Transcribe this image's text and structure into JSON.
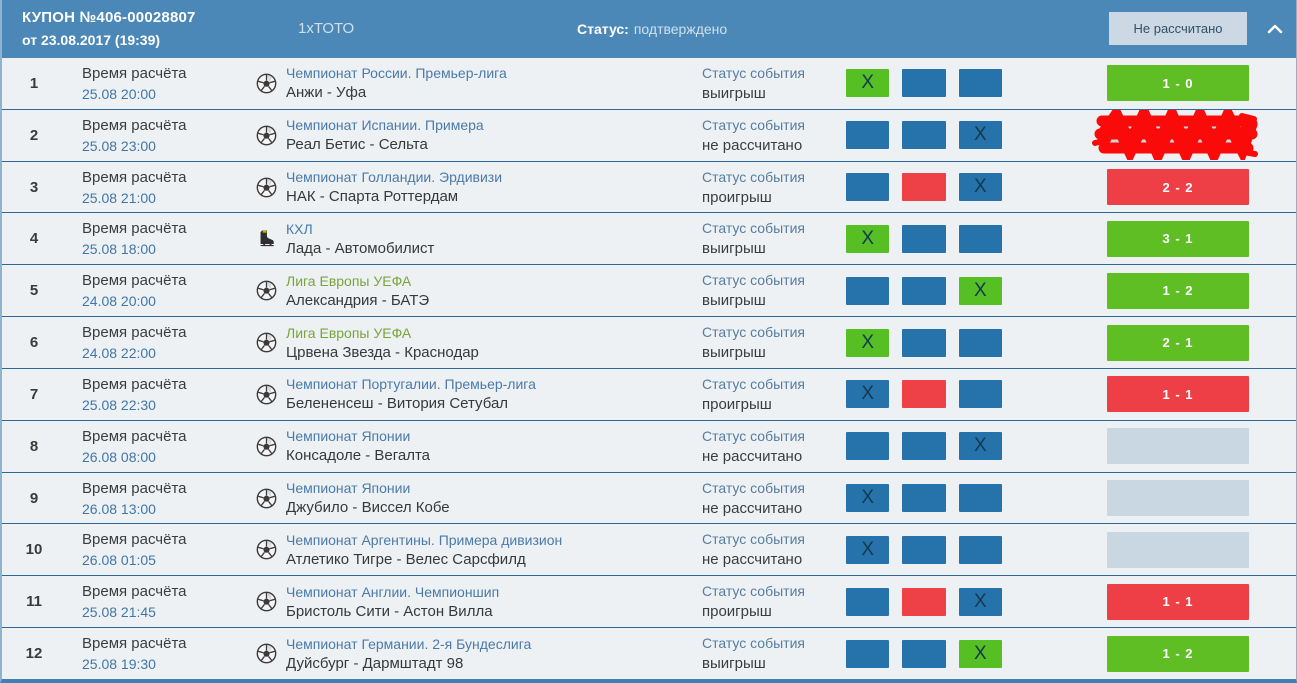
{
  "header": {
    "coupon_title": "КУПОН №406-00028807",
    "coupon_date": "от 23.08.2017 (19:39)",
    "game_type": "1хТОТО",
    "status_label": "Статус:",
    "status_value": "подтверждено",
    "result_button": "Не рассчитано",
    "collapse_icon": "chevron-up-icon"
  },
  "labels": {
    "settlement_time": "Время расчёта",
    "event_status": "Статус события"
  },
  "colors": {
    "header_bg": "#4c88b7",
    "row_bg": "#edf1f4",
    "separator": "#2e6795",
    "box_blue": "#2573aa",
    "box_green": "#55bf23",
    "box_red": "#ee4047",
    "score_win": "#5fbe24",
    "score_lose": "#ee3f47",
    "score_pending": "#c9d7e3",
    "league_link": "#4a7aa9",
    "league_link_green": "#79a43c",
    "redaction_marker": "#fb0a0a"
  },
  "rows": [
    {
      "num": "1",
      "time": "25.08 20:00",
      "sport": "football",
      "league": "Чемпионат России. Премьер-лига",
      "league_color": "blue",
      "match": "Анжи - Уфа",
      "status": "выигрыш",
      "boxes": [
        {
          "c": "green",
          "x": true
        },
        {
          "c": "blue",
          "x": false
        },
        {
          "c": "blue",
          "x": false
        }
      ],
      "score": "1 - 0",
      "score_style": "win",
      "redacted": false
    },
    {
      "num": "2",
      "time": "25.08 23:00",
      "sport": "football",
      "league": "Чемпионат Испании. Примера",
      "league_color": "blue",
      "match": "Реал Бетис - Сельта",
      "status": "не рассчитано",
      "boxes": [
        {
          "c": "blue",
          "x": false
        },
        {
          "c": "blue",
          "x": false
        },
        {
          "c": "blue",
          "x": true
        }
      ],
      "score": "",
      "score_style": "pending",
      "redacted": true
    },
    {
      "num": "3",
      "time": "25.08 21:00",
      "sport": "football",
      "league": "Чемпионат Голландии. Эрдивизи",
      "league_color": "blue",
      "match": "НАК - Спарта Роттердам",
      "status": "проигрыш",
      "boxes": [
        {
          "c": "blue",
          "x": false
        },
        {
          "c": "red",
          "x": false
        },
        {
          "c": "blue",
          "x": true
        }
      ],
      "score": "2 - 2",
      "score_style": "lose",
      "redacted": false
    },
    {
      "num": "4",
      "time": "25.08 18:00",
      "sport": "hockey",
      "league": "КХЛ",
      "league_color": "blue",
      "match": "Лада - Автомобилист",
      "status": "выигрыш",
      "boxes": [
        {
          "c": "green",
          "x": true
        },
        {
          "c": "blue",
          "x": false
        },
        {
          "c": "blue",
          "x": false
        }
      ],
      "score": "3 - 1",
      "score_style": "win",
      "redacted": false
    },
    {
      "num": "5",
      "time": "24.08 20:00",
      "sport": "football",
      "league": "Лига Европы УЕФА",
      "league_color": "green",
      "match": "Александрия - БАТЭ",
      "status": "выигрыш",
      "boxes": [
        {
          "c": "blue",
          "x": false
        },
        {
          "c": "blue",
          "x": false
        },
        {
          "c": "green",
          "x": true
        }
      ],
      "score": "1 - 2",
      "score_style": "win",
      "redacted": false
    },
    {
      "num": "6",
      "time": "24.08 22:00",
      "sport": "football",
      "league": "Лига Европы УЕФА",
      "league_color": "green",
      "match": "Црвена Звезда - Краснодар",
      "status": "выигрыш",
      "boxes": [
        {
          "c": "green",
          "x": true
        },
        {
          "c": "blue",
          "x": false
        },
        {
          "c": "blue",
          "x": false
        }
      ],
      "score": "2 - 1",
      "score_style": "win",
      "redacted": false
    },
    {
      "num": "7",
      "time": "25.08 22:30",
      "sport": "football",
      "league": "Чемпионат Португалии. Премьер-лига",
      "league_color": "blue",
      "match": "Белененсеш - Витория Сетубал",
      "status": "проигрыш",
      "boxes": [
        {
          "c": "blue",
          "x": true
        },
        {
          "c": "red",
          "x": false
        },
        {
          "c": "blue",
          "x": false
        }
      ],
      "score": "1 - 1",
      "score_style": "lose",
      "redacted": false
    },
    {
      "num": "8",
      "time": "26.08 08:00",
      "sport": "football",
      "league": "Чемпионат Японии",
      "league_color": "blue",
      "match": "Консадоле - Вегалта",
      "status": "не рассчитано",
      "boxes": [
        {
          "c": "blue",
          "x": false
        },
        {
          "c": "blue",
          "x": false
        },
        {
          "c": "blue",
          "x": true
        }
      ],
      "score": "",
      "score_style": "pending",
      "redacted": false
    },
    {
      "num": "9",
      "time": "26.08 13:00",
      "sport": "football",
      "league": "Чемпионат Японии",
      "league_color": "blue",
      "match": "Джубило - Виссел Кобе",
      "status": "не рассчитано",
      "boxes": [
        {
          "c": "blue",
          "x": true
        },
        {
          "c": "blue",
          "x": false
        },
        {
          "c": "blue",
          "x": false
        }
      ],
      "score": "",
      "score_style": "pending",
      "redacted": false
    },
    {
      "num": "10",
      "time": "26.08 01:05",
      "sport": "football",
      "league": "Чемпионат Аргентины. Примера дивизион",
      "league_color": "blue",
      "match": "Атлетико Тигре - Велес Сарсфилд",
      "status": "не рассчитано",
      "boxes": [
        {
          "c": "blue",
          "x": true
        },
        {
          "c": "blue",
          "x": false
        },
        {
          "c": "blue",
          "x": false
        }
      ],
      "score": "",
      "score_style": "pending",
      "redacted": false
    },
    {
      "num": "11",
      "time": "25.08 21:45",
      "sport": "football",
      "league": "Чемпионат Англии. Чемпионшип",
      "league_color": "blue",
      "match": "Бристоль Сити - Астон Вилла",
      "status": "проигрыш",
      "boxes": [
        {
          "c": "blue",
          "x": false
        },
        {
          "c": "red",
          "x": false
        },
        {
          "c": "blue",
          "x": true
        }
      ],
      "score": "1 - 1",
      "score_style": "lose",
      "redacted": false
    },
    {
      "num": "12",
      "time": "25.08 19:30",
      "sport": "football",
      "league": "Чемпионат Германии. 2-я Бундеслига",
      "league_color": "blue",
      "match": "Дуйсбург - Дармштадт 98",
      "status": "выигрыш",
      "boxes": [
        {
          "c": "blue",
          "x": false
        },
        {
          "c": "blue",
          "x": false
        },
        {
          "c": "green",
          "x": true
        }
      ],
      "score": "1 - 2",
      "score_style": "win",
      "redacted": false
    }
  ]
}
